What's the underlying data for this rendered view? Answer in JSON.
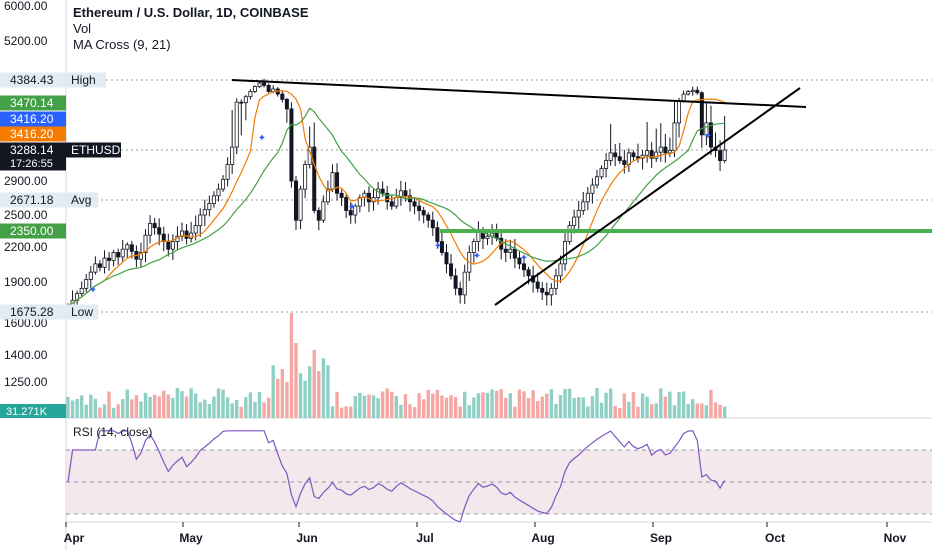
{
  "legend": {
    "title": "Ethereum / U.S. Dollar, 1D, COINBASE",
    "line2": "Vol",
    "line3": "MA Cross (9, 21)"
  },
  "rsi_title": "RSI (14, close)",
  "colors": {
    "up": "#26a69a",
    "down": "#ef5350",
    "ma_fast": "#f57c00",
    "ma_slow": "#43a047",
    "support": "#4caf50",
    "rsi_line": "#7e57c2",
    "rsi_band": "#f3e8ec",
    "grid": "#e0e3eb"
  },
  "chart_data": {
    "type": "candlestick",
    "symbol": "ETHUSD",
    "x_ticks": [
      "Apr",
      "May",
      "Jun",
      "Jul",
      "Aug",
      "Sep",
      "Oct",
      "Nov"
    ],
    "y_ticks": [
      "6000.00",
      "5200.00",
      "2900.00",
      "2500.00",
      "2200.00",
      "1900.00"
    ],
    "y_scale": "log",
    "price_labels": [
      {
        "text": "4384.43",
        "tag": "High",
        "value": 4384.43,
        "bg": "#e1ecf2",
        "fg": "#131722"
      },
      {
        "text": "3470.14",
        "tag": "",
        "value": 3470.14,
        "bg": "#43a047",
        "fg": "#ffffff"
      },
      {
        "text": "3416.20",
        "tag": "",
        "value": 3416.2,
        "bg": "#2962ff",
        "fg": "#ffffff"
      },
      {
        "text": "3416.20",
        "tag": "",
        "value": 3416.2,
        "bg": "#f57c00",
        "fg": "#ffffff"
      },
      {
        "text": "3288.14",
        "tag": "ETHUSD",
        "value": 3288.14,
        "bg": "#131722",
        "fg": "#ffffff",
        "countdown": "17:26:55"
      },
      {
        "text": "2671.18",
        "tag": "Avg",
        "value": 2671.18,
        "bg": "#e1ecf2",
        "fg": "#131722"
      },
      {
        "text": "2350.00",
        "tag": "",
        "value": 2350.0,
        "bg": "#43a047",
        "fg": "#ffffff"
      },
      {
        "text": "1675.28",
        "tag": "Low",
        "value": 1675.28,
        "bg": "#e1ecf2",
        "fg": "#131722"
      }
    ],
    "support_level": 2350,
    "ref_lines": [
      4384.43,
      3288.14,
      2671.18,
      1675.28
    ],
    "closes": [
      1720,
      1760,
      1810,
      1850,
      1920,
      1980,
      2050,
      2020,
      2100,
      2080,
      2150,
      2110,
      2180,
      2220,
      2160,
      2090,
      2150,
      2310,
      2420,
      2380,
      2320,
      2250,
      2180,
      2250,
      2300,
      2350,
      2280,
      2330,
      2400,
      2500,
      2560,
      2630,
      2720,
      2800,
      2920,
      3100,
      3300,
      3500,
      3480,
      3700,
      3900,
      4100,
      4250,
      4150,
      3900,
      4000,
      3800,
      3600,
      3450,
      2900,
      2450,
      2800,
      3100,
      3300,
      2550,
      2450,
      2650,
      2800,
      3000,
      2750,
      2700,
      2550,
      2500,
      2600,
      2700,
      2750,
      2650,
      2700,
      2800,
      2750,
      2650,
      2600,
      2700,
      2780,
      2720,
      2650,
      2600,
      2550,
      2500,
      2450,
      2380,
      2250,
      2150,
      2050,
      1950,
      1850,
      1800,
      1980,
      2150,
      2250,
      2350,
      2280,
      2300,
      2330,
      2280,
      2180,
      2150,
      2180,
      2100,
      2050,
      2000,
      1950,
      1900,
      1850,
      1820,
      1800,
      1850,
      1950,
      2050,
      2250,
      2400,
      2480,
      2550,
      2650,
      2750,
      2850,
      2950,
      3050,
      3150,
      3250,
      3200,
      3150,
      3100,
      3250,
      3200,
      3180,
      3220,
      3280,
      3180,
      3260,
      3300,
      3250,
      3280,
      3400,
      3550,
      3800,
      3900,
      3950,
      3850,
      3350,
      3400,
      3300,
      3280,
      3150,
      3288
    ],
    "volume_ticks": [
      "1600.00",
      "1400.00",
      "1250.00"
    ],
    "volume_last": "31.271K",
    "rsi_levels": [
      70,
      50,
      30
    ]
  }
}
